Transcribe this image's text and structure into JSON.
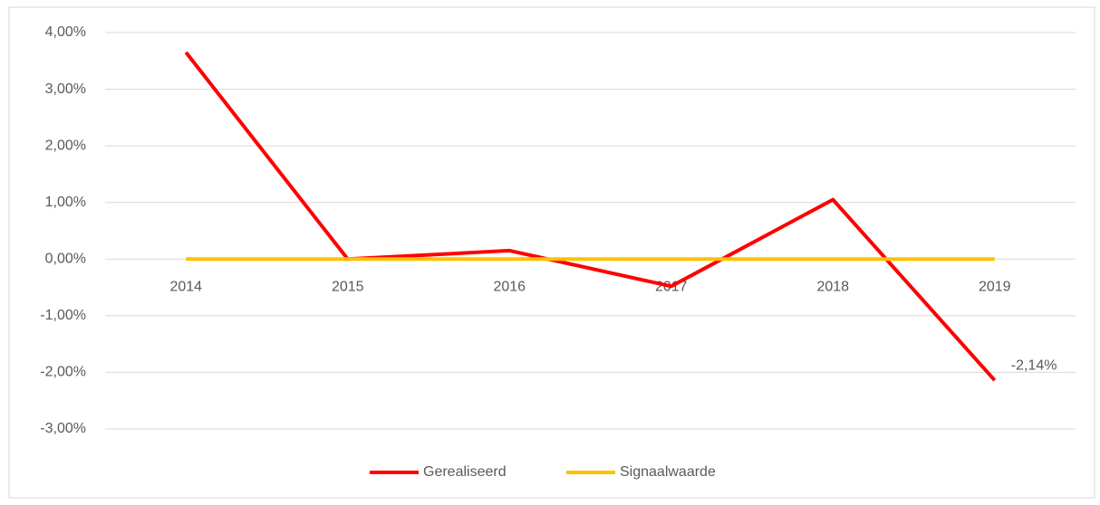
{
  "chart_data": {
    "type": "line",
    "categories": [
      "2014",
      "2015",
      "2016",
      "2017",
      "2018",
      "2019"
    ],
    "series": [
      {
        "name": "Gerealiseerd",
        "color": "#ff0000",
        "values": [
          3.65,
          0.0,
          0.15,
          -0.48,
          1.05,
          -2.14
        ],
        "value_labels": [
          null,
          null,
          null,
          null,
          null,
          "-2,14%"
        ]
      },
      {
        "name": "Signaalwaarde",
        "color": "#ffc000",
        "values": [
          0,
          0,
          0,
          0,
          0,
          0
        ]
      }
    ],
    "ylim": [
      -3,
      4
    ],
    "yticks": [
      {
        "value": 4,
        "label": "4,00%"
      },
      {
        "value": 3,
        "label": "3,00%"
      },
      {
        "value": 2,
        "label": "2,00%"
      },
      {
        "value": 1,
        "label": "1,00%"
      },
      {
        "value": 0,
        "label": "0,00%"
      },
      {
        "value": -1,
        "label": "-1,00%"
      },
      {
        "value": -2,
        "label": "-2,00%"
      },
      {
        "value": -3,
        "label": "-3,00%"
      }
    ],
    "grid": true,
    "legend": "bottom"
  }
}
